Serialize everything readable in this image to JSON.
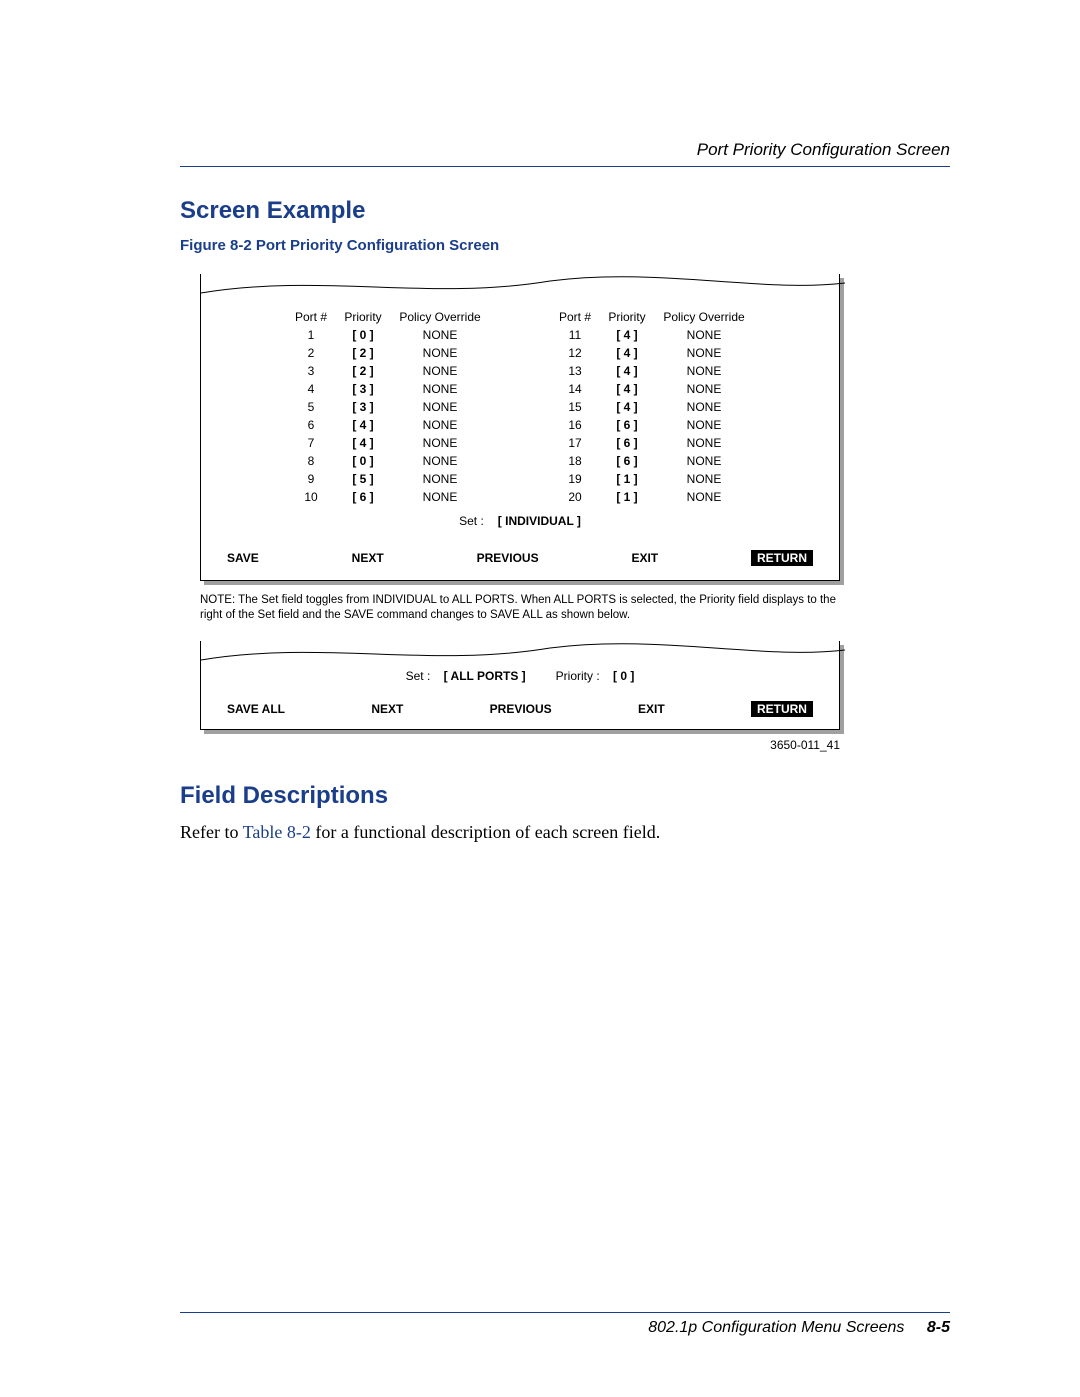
{
  "header": {
    "section_title": "Port Priority Configuration Screen"
  },
  "section_heading": "Screen Example",
  "figure_caption": "Figure 8-2    Port Priority Configuration Screen",
  "screen1": {
    "columns": {
      "port": "Port #",
      "priority": "Priority",
      "override": "Policy Override"
    },
    "left": [
      {
        "port": "1",
        "prio": "[ 0 ]",
        "over": "NONE"
      },
      {
        "port": "2",
        "prio": "[ 2 ]",
        "over": "NONE"
      },
      {
        "port": "3",
        "prio": "[ 2 ]",
        "over": "NONE"
      },
      {
        "port": "4",
        "prio": "[ 3 ]",
        "over": "NONE"
      },
      {
        "port": "5",
        "prio": "[ 3 ]",
        "over": "NONE"
      },
      {
        "port": "6",
        "prio": "[ 4 ]",
        "over": "NONE"
      },
      {
        "port": "7",
        "prio": "[ 4 ]",
        "over": "NONE"
      },
      {
        "port": "8",
        "prio": "[ 0 ]",
        "over": "NONE"
      },
      {
        "port": "9",
        "prio": "[ 5 ]",
        "over": "NONE"
      },
      {
        "port": "10",
        "prio": "[ 6 ]",
        "over": "NONE"
      }
    ],
    "right": [
      {
        "port": "11",
        "prio": "[ 4 ]",
        "over": "NONE"
      },
      {
        "port": "12",
        "prio": "[ 4 ]",
        "over": "NONE"
      },
      {
        "port": "13",
        "prio": "[ 4 ]",
        "over": "NONE"
      },
      {
        "port": "14",
        "prio": "[ 4 ]",
        "over": "NONE"
      },
      {
        "port": "15",
        "prio": "[ 4 ]",
        "over": "NONE"
      },
      {
        "port": "16",
        "prio": "[ 6 ]",
        "over": "NONE"
      },
      {
        "port": "17",
        "prio": "[ 6 ]",
        "over": "NONE"
      },
      {
        "port": "18",
        "prio": "[ 6 ]",
        "over": "NONE"
      },
      {
        "port": "19",
        "prio": "[ 1 ]",
        "over": "NONE"
      },
      {
        "port": "20",
        "prio": "[ 1 ]",
        "over": "NONE"
      }
    ],
    "set_label": "Set :",
    "set_value": "[ INDIVIDUAL ]",
    "buttons": {
      "save": "SAVE",
      "next": "NEXT",
      "previous": "PREVIOUS",
      "exit": "EXIT",
      "return": "RETURN"
    }
  },
  "note": "NOTE: The Set field toggles from INDIVIDUAL to ALL PORTS. When ALL PORTS is selected, the Priority field displays to the right of  the Set field and the SAVE command changes to SAVE ALL as shown below.",
  "screen2": {
    "set_label": "Set :",
    "set_value": "[ ALL PORTS ]",
    "priority_label": "Priority :",
    "priority_value": "[  0  ]",
    "buttons": {
      "save": "SAVE ALL",
      "next": "NEXT",
      "previous": "PREVIOUS",
      "exit": "EXIT",
      "return": "RETURN"
    }
  },
  "figure_id": "3650-011_41",
  "field_desc_heading": "Field Descriptions",
  "field_desc_text_pre": "Refer to ",
  "field_desc_link": "Table 8-2",
  "field_desc_text_post": " for a functional description of each screen field.",
  "footer": {
    "title": "802.1p Configuration Menu Screens",
    "page": "8-5"
  }
}
